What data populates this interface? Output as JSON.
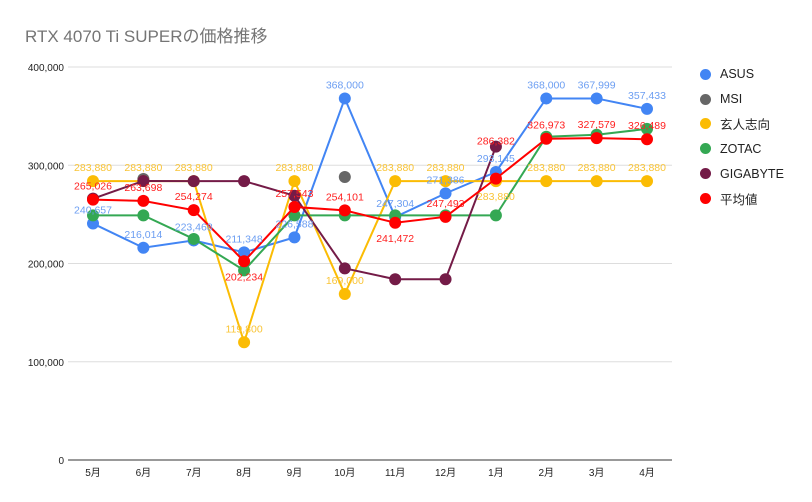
{
  "chart_data": {
    "type": "line",
    "title": "RTX 4070 Ti SUPERの価格推移",
    "xlabel": "",
    "ylabel": "",
    "categories": [
      "5月",
      "6月",
      "7月",
      "8月",
      "9月",
      "10月",
      "11月",
      "12月",
      "1月",
      "2月",
      "3月",
      "4月"
    ],
    "ylim": [
      0,
      400000
    ],
    "yticks": [
      0,
      100000,
      200000,
      300000,
      400000
    ],
    "ytick_labels": [
      "0",
      "100,000",
      "200,000",
      "300,000",
      "400,000"
    ],
    "grid": true,
    "legend_position": "right",
    "series": [
      {
        "name": "ASUS",
        "color": "#4285F4",
        "label_color": "#6C9EF2",
        "show_labels": true,
        "values": [
          240657,
          216014,
          223468,
          211348,
          226588,
          368000,
          247304,
          271386,
          293145,
          368000,
          367999,
          357433
        ]
      },
      {
        "name": "MSI",
        "color": "#666666",
        "label_color": "#666666",
        "show_labels": false,
        "values": [
          null,
          286000,
          null,
          null,
          null,
          288000,
          null,
          null,
          null,
          null,
          null,
          null
        ]
      },
      {
        "name": "玄人志向",
        "color": "#FBBC04",
        "label_color": "#F9C436",
        "show_labels": true,
        "values": [
          283880,
          283880,
          283880,
          119800,
          283880,
          169000,
          283880,
          283880,
          283880,
          283880,
          283880,
          283880
        ]
      },
      {
        "name": "ZOTAC",
        "color": "#34A853",
        "label_color": "#34A853",
        "show_labels": false,
        "values": [
          249000,
          249000,
          225000,
          193000,
          249000,
          249000,
          249000,
          249000,
          249000,
          329000,
          331000,
          337000
        ]
      },
      {
        "name": "GIGABYTE",
        "color": "#741B47",
        "label_color": "#741B47",
        "show_labels": false,
        "values": [
          266000,
          284000,
          283880,
          283880,
          269000,
          195000,
          184000,
          184000,
          319000,
          null,
          null,
          null
        ]
      },
      {
        "name": "平均値",
        "color": "#FF0000",
        "label_color": "#FF2020",
        "show_labels": true,
        "values": [
          265026,
          263698,
          254274,
          202234,
          257543,
          254101,
          241472,
          247493,
          286382,
          326973,
          327579,
          326489
        ]
      }
    ]
  }
}
